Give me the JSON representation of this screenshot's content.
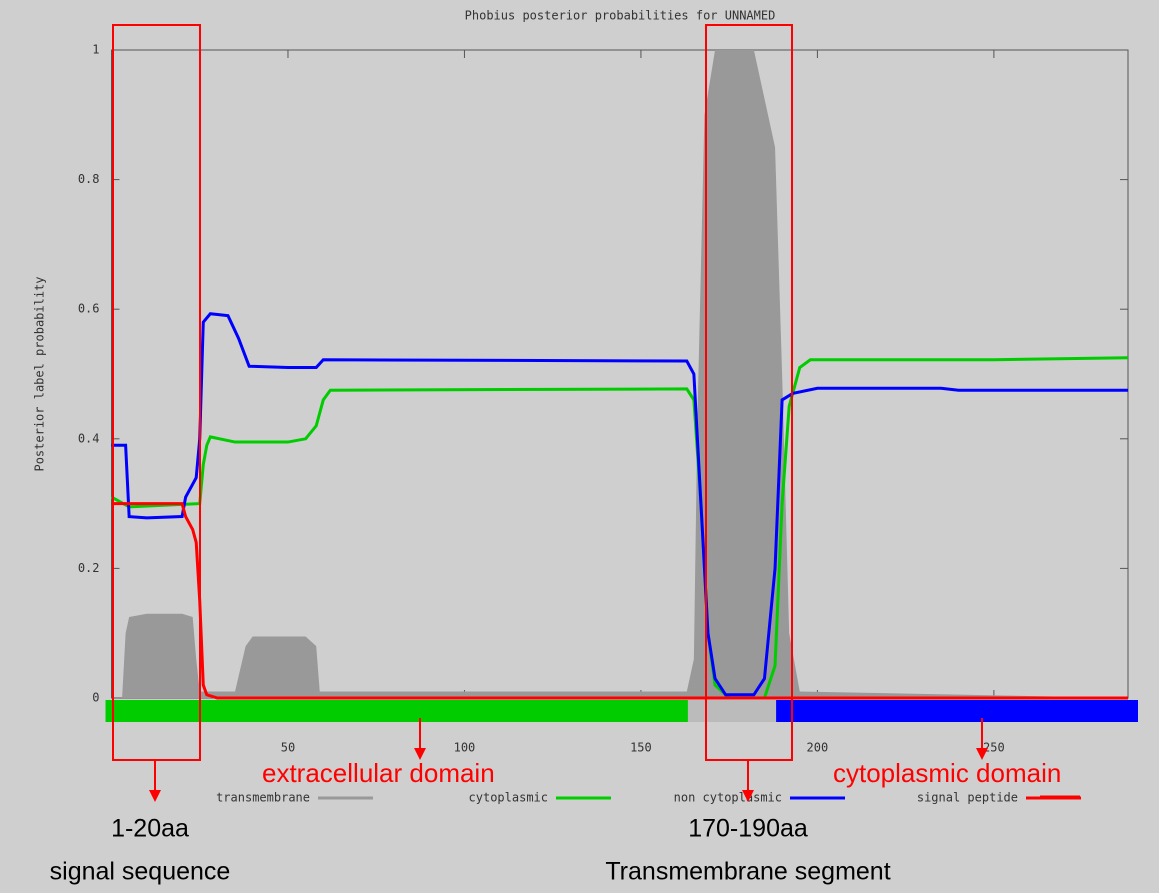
{
  "chart_data": {
    "type": "line",
    "title": "Phobius posterior probabilities for UNNAMED",
    "y_label": "Posterior label probability",
    "xlim": [
      0,
      288
    ],
    "ylim": [
      0,
      1
    ],
    "xticks": [
      50,
      100,
      150,
      200,
      250
    ],
    "yticks": [
      0,
      0.2,
      0.4,
      0.6,
      0.8,
      1
    ],
    "series": [
      {
        "name": "transmembrane",
        "color": "#999999",
        "fill": true,
        "x": [
          0,
          3,
          4,
          5,
          10,
          20,
          23,
          24,
          25,
          35,
          38,
          40,
          55,
          58,
          59,
          163,
          165,
          166,
          168,
          171,
          182,
          184,
          188,
          190,
          192,
          195,
          288
        ],
        "values": [
          0,
          0,
          0.1,
          0.125,
          0.13,
          0.13,
          0.125,
          0.06,
          0.01,
          0.01,
          0.08,
          0.095,
          0.095,
          0.08,
          0.01,
          0.01,
          0.06,
          0.43,
          0.9,
          1,
          1,
          0.95,
          0.85,
          0.5,
          0.1,
          0.01,
          0
        ]
      },
      {
        "name": "cytoplasmic",
        "color": "#00cc00",
        "x": [
          0,
          5,
          25,
          26,
          27,
          28,
          35,
          50,
          55,
          58,
          60,
          62,
          163,
          165,
          167,
          169,
          171,
          175,
          185,
          188,
          190,
          192,
          195,
          198,
          250,
          288
        ],
        "values": [
          0.31,
          0.295,
          0.3,
          0.36,
          0.39,
          0.403,
          0.395,
          0.395,
          0.4,
          0.42,
          0.46,
          0.475,
          0.477,
          0.46,
          0.3,
          0.1,
          0.02,
          0,
          0,
          0.05,
          0.3,
          0.45,
          0.51,
          0.522,
          0.522,
          0.525
        ]
      },
      {
        "name": "non cytoplasmic",
        "color": "#0000ff",
        "x": [
          0,
          4,
          5,
          10,
          20,
          21,
          24,
          25,
          26,
          28,
          33,
          36,
          39,
          50,
          58,
          60,
          163,
          165,
          167,
          169,
          171,
          174,
          182,
          185,
          188,
          190,
          193,
          200,
          235,
          240,
          288
        ],
        "values": [
          0.39,
          0.39,
          0.28,
          0.278,
          0.28,
          0.31,
          0.34,
          0.4,
          0.58,
          0.593,
          0.59,
          0.555,
          0.512,
          0.51,
          0.51,
          0.522,
          0.52,
          0.5,
          0.3,
          0.1,
          0.03,
          0.005,
          0.005,
          0.03,
          0.2,
          0.46,
          0.47,
          0.478,
          0.478,
          0.475,
          0.475
        ]
      },
      {
        "name": "signal peptide",
        "color": "#ff0000",
        "x": [
          0,
          20,
          21,
          23,
          24,
          25,
          26,
          27,
          30,
          288
        ],
        "values": [
          0.3,
          0.3,
          0.28,
          0.26,
          0.24,
          0.15,
          0.02,
          0.005,
          0,
          0
        ]
      }
    ],
    "topology": [
      {
        "start": 0,
        "end": 165,
        "color": "#00cc00"
      },
      {
        "start": 165,
        "end": 190,
        "color": "#bbbbbb"
      },
      {
        "start": 190,
        "end": 288,
        "color": "#0000ff"
      }
    ],
    "annotations": {
      "extracellular": "extracellular domain",
      "cytoplasmic": "cytoplasmic domain",
      "signal_range": "1-20aa",
      "signal_label": "signal sequence",
      "tm_range": "170-190aa",
      "tm_label": "Transmembrane segment"
    }
  }
}
